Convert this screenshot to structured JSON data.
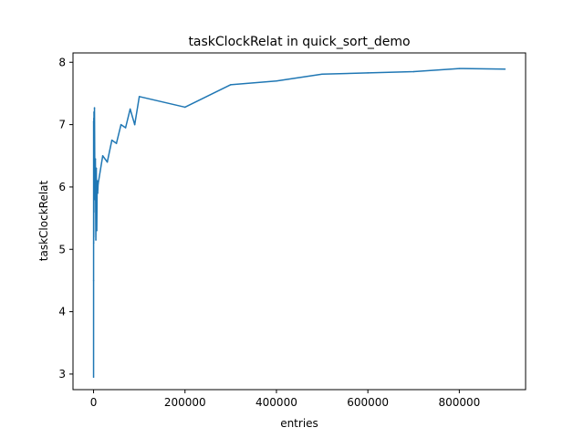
{
  "chart_data": {
    "type": "line",
    "title": "taskClockRelat in quick_sort_demo",
    "xlabel": "entries",
    "ylabel": "taskClockRelat",
    "xlim": [
      -45000,
      945000
    ],
    "ylim": [
      2.75,
      8.15
    ],
    "x_ticks": [
      0,
      200000,
      400000,
      600000,
      800000
    ],
    "x_tick_labels": [
      "0",
      "200000",
      "400000",
      "600000",
      "800000"
    ],
    "y_ticks": [
      3,
      4,
      5,
      6,
      7,
      8
    ],
    "y_tick_labels": [
      "3",
      "4",
      "5",
      "6",
      "7",
      "8"
    ],
    "grid": false,
    "color": "#1f77b4",
    "series": [
      {
        "x": [
          10,
          50,
          100,
          200,
          300,
          400,
          500,
          600,
          700,
          800,
          900,
          1000,
          2000,
          3000,
          4000,
          5000,
          6000,
          7000,
          8000,
          9000,
          10000,
          20000,
          30000,
          40000,
          50000,
          60000,
          70000,
          80000,
          90000,
          100000,
          200000,
          300000,
          400000,
          500000,
          600000,
          700000,
          800000,
          900000
        ],
        "y": [
          2.95,
          4.5,
          7.05,
          5.1,
          6.9,
          5.2,
          7.1,
          6.0,
          6.8,
          5.6,
          7.2,
          6.6,
          7.27,
          5.8,
          6.45,
          5.15,
          6.3,
          5.3,
          6.1,
          5.9,
          6.05,
          6.5,
          6.4,
          6.75,
          6.7,
          7.0,
          6.95,
          7.25,
          7.0,
          7.45,
          7.28,
          7.64,
          7.7,
          7.81,
          7.83,
          7.85,
          7.9,
          7.89
        ]
      }
    ]
  }
}
